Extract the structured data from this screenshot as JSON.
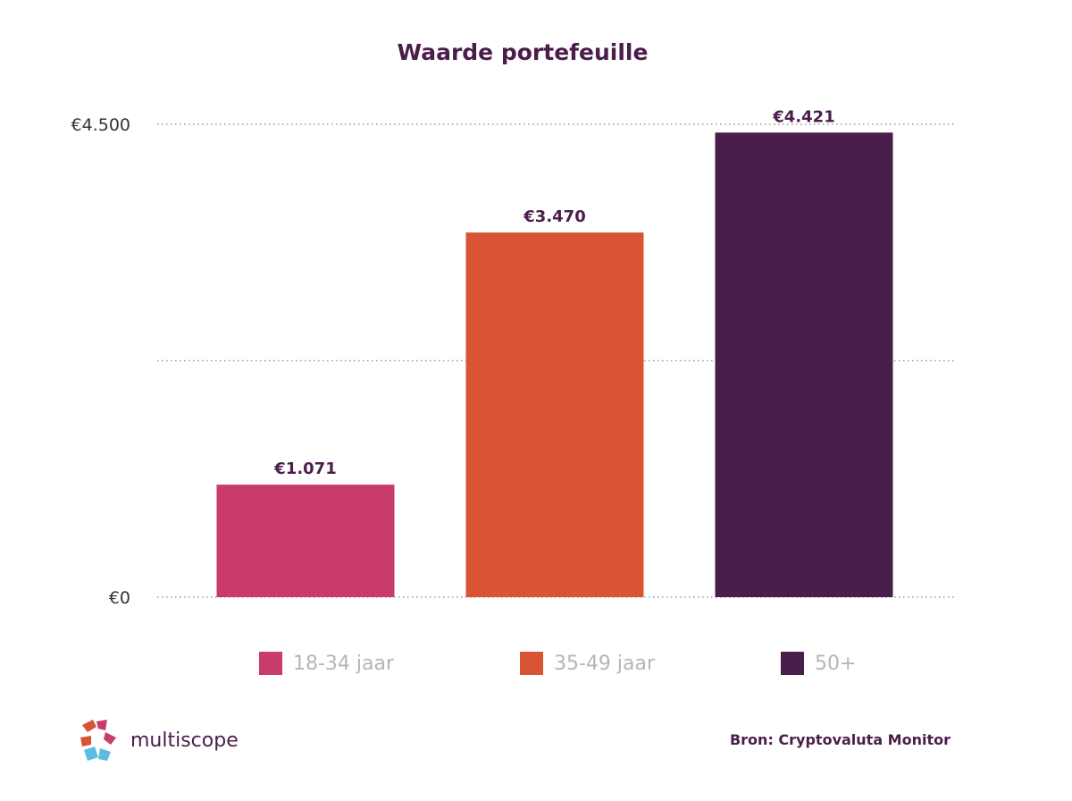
{
  "title": "Waarde portefeuille",
  "chart_data": {
    "type": "bar",
    "title": "Waarde portefeuille",
    "xlabel": "",
    "ylabel": "",
    "categories": [
      "18-34 jaar",
      "35-49 jaar",
      "50+"
    ],
    "values": [
      1071,
      3470,
      4421
    ],
    "value_labels": [
      "€1.071",
      "€3.470",
      "€4.421"
    ],
    "colors": [
      "#c93b6a",
      "#d95433",
      "#4a1e4b"
    ],
    "ylim": [
      0,
      4500
    ],
    "ytick_values": [
      0,
      2250,
      4500
    ],
    "ytick_labels": [
      "€0",
      "",
      "€4.500"
    ],
    "grid": true,
    "legend_position": "bottom"
  },
  "legend": [
    {
      "label": "18-34 jaar",
      "color": "#c93b6a"
    },
    {
      "label": "35-49 jaar",
      "color": "#d95433"
    },
    {
      "label": "50+",
      "color": "#4a1e4b"
    }
  ],
  "logo": {
    "name": "multiscope"
  },
  "source": "Bron: Cryptovaluta Monitor"
}
